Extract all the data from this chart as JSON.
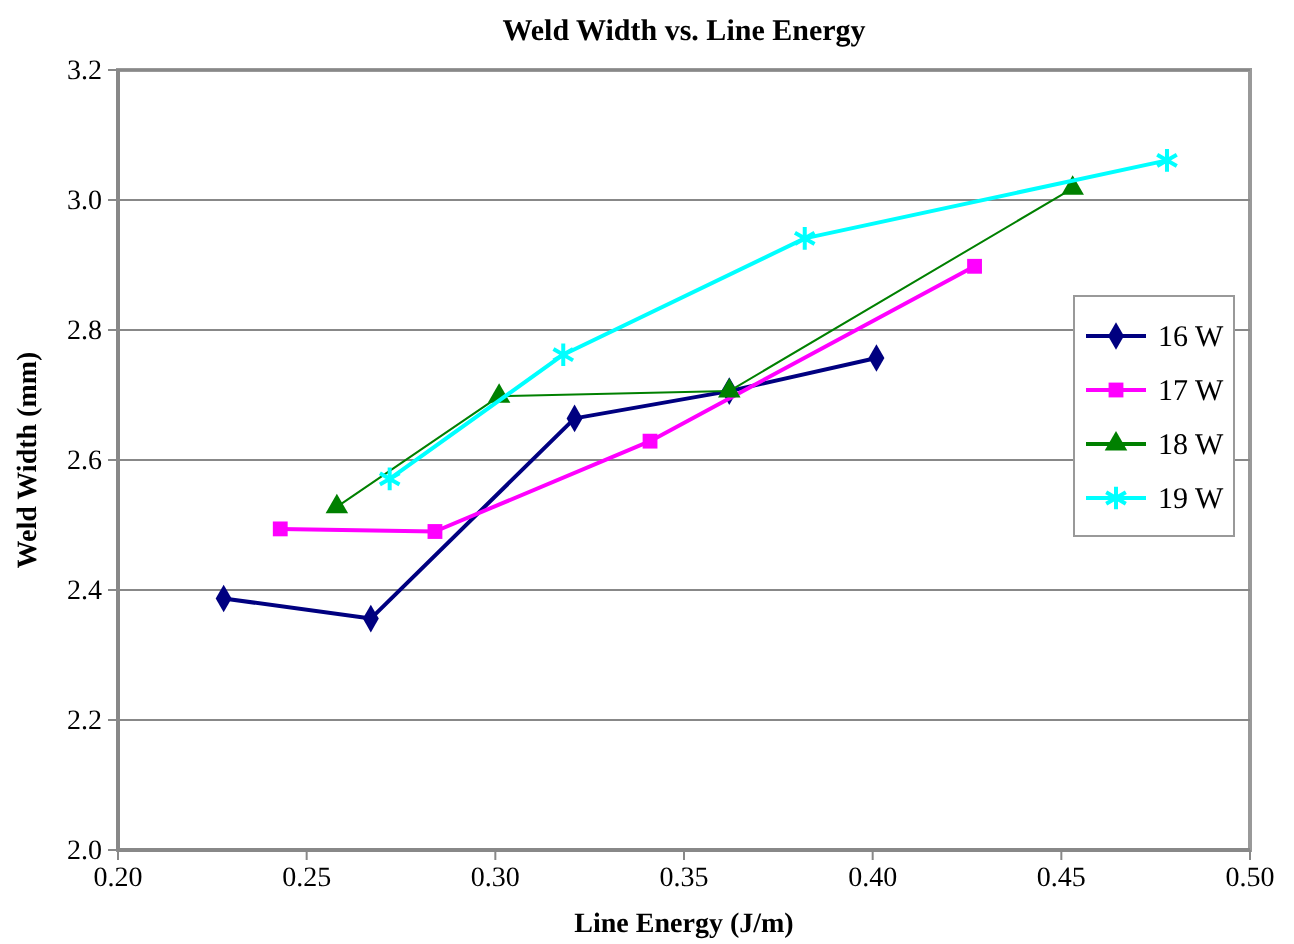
{
  "chart_data": {
    "type": "line",
    "title": "Weld Width vs. Line Energy",
    "xlabel": "Line Energy (J/m)",
    "ylabel": "Weld Width (mm)",
    "xlim": [
      0.2,
      0.5
    ],
    "xticks": [
      {
        "value": 0.2,
        "label": "0.20"
      },
      0.25,
      {
        "value": 0.3,
        "label": "0.30"
      },
      0.35,
      {
        "value": 0.4,
        "label": "0.40"
      },
      0.45,
      {
        "value": 0.5,
        "label": "0.50"
      }
    ],
    "ylim": [
      2.0,
      3.2
    ],
    "yticks": [
      {
        "value": 2,
        "label": "2.0"
      },
      2.2,
      2.4,
      2.6,
      2.8,
      {
        "value": 3,
        "label": "3.0"
      },
      3.2
    ],
    "grid": "y",
    "legend": "right",
    "series": [
      {
        "name": "16 W",
        "color": "#000080",
        "marker": "diamond",
        "x": [
          0.228,
          0.267,
          0.321,
          0.362,
          0.401
        ],
        "values": [
          2.387,
          2.356,
          2.664,
          2.706,
          2.757
        ]
      },
      {
        "name": "17 W",
        "color": "#ff00ff",
        "marker": "square",
        "x": [
          0.243,
          0.284,
          0.341,
          0.427
        ],
        "values": [
          2.494,
          2.49,
          2.629,
          2.898
        ]
      },
      {
        "name": "18 W",
        "color": "#008000",
        "marker": "triangle",
        "x": [
          0.258,
          0.301,
          0.362,
          0.453
        ],
        "values": [
          2.528,
          2.698,
          2.706,
          3.018
        ]
      },
      {
        "name": "19 W",
        "color": "#00ffff",
        "marker": "cross",
        "x": [
          0.272,
          0.318,
          0.382,
          0.478
        ],
        "values": [
          2.571,
          2.762,
          2.941,
          3.061
        ]
      }
    ]
  }
}
